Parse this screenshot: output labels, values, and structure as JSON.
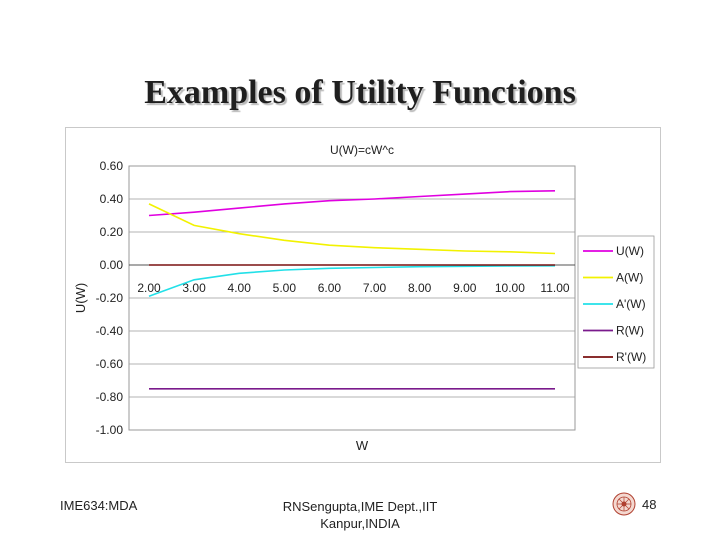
{
  "slide": {
    "title": "Examples of Utility Functions",
    "footer_left": "IME634:MDA",
    "footer_center_line1": "RNSengupta,IME Dept.,IIT",
    "footer_center_line2": "Kanpur,INDIA",
    "page_number": "48"
  },
  "chart_data": {
    "type": "line",
    "title": "U(W)=cW^c",
    "xlabel": "W",
    "ylabel": "U(W)",
    "categories": [
      "2.00",
      "3.00",
      "4.00",
      "5.00",
      "6.00",
      "7.00",
      "8.00",
      "9.00",
      "10.00",
      "11.00"
    ],
    "x": [
      2,
      3,
      4,
      5,
      6,
      7,
      8,
      9,
      10,
      11
    ],
    "ylim": [
      -1.0,
      0.6
    ],
    "yticks": [
      "0.60",
      "0.40",
      "0.20",
      "0.00",
      "-0.20",
      "-0.40",
      "-0.60",
      "-0.80",
      "-1.00"
    ],
    "ytick_values": [
      0.6,
      0.4,
      0.2,
      0.0,
      -0.2,
      -0.4,
      -0.6,
      -0.8,
      -1.0
    ],
    "grid": "horizontal",
    "legend_position": "right",
    "plot_background": "#ffffff",
    "series": [
      {
        "name": "U(W)",
        "color": "#e000e0",
        "values": [
          0.3,
          0.32,
          0.345,
          0.37,
          0.39,
          0.4,
          0.415,
          0.43,
          0.445,
          0.45
        ]
      },
      {
        "name": "A(W)",
        "color": "#f2f200",
        "values": [
          0.37,
          0.24,
          0.19,
          0.15,
          0.12,
          0.105,
          0.095,
          0.085,
          0.08,
          0.07
        ]
      },
      {
        "name": "A'(W)",
        "color": "#22e0e8",
        "values": [
          -0.19,
          -0.09,
          -0.05,
          -0.03,
          -0.02,
          -0.015,
          -0.01,
          -0.008,
          -0.006,
          -0.005
        ]
      },
      {
        "name": "R(W)",
        "color": "#7a1a8c",
        "values": [
          -0.75,
          -0.75,
          -0.75,
          -0.75,
          -0.75,
          -0.75,
          -0.75,
          -0.75,
          -0.75,
          -0.75
        ]
      },
      {
        "name": "R'(W)",
        "color": "#7a1010",
        "values": [
          0.0,
          0.0,
          0.0,
          0.0,
          0.0,
          0.0,
          0.0,
          0.0,
          0.0,
          0.0
        ]
      }
    ]
  }
}
